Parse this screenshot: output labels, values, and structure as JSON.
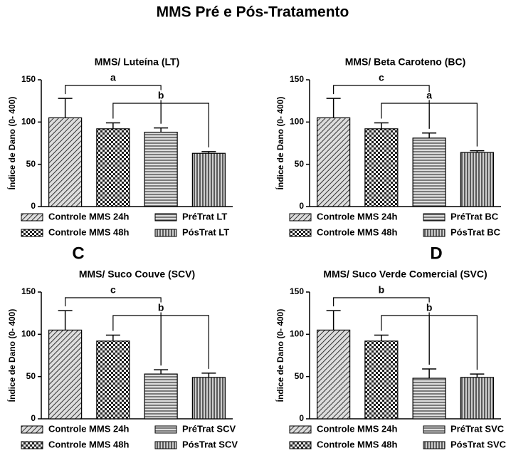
{
  "title": "MMS Pré e Pós-Tratamento",
  "chart_data": [
    {
      "type": "bar",
      "title": "MMS/ Luteína (LT)",
      "ylabel": "Índice de Dano (0- 400)",
      "categories": [
        "Controle MMS 24h",
        "Controle MMS 48h",
        "PréTrat LT",
        "PósTrat LT"
      ],
      "values": [
        105,
        92,
        88,
        63
      ],
      "errors": [
        23,
        7,
        5,
        2
      ],
      "ylim": [
        0,
        150
      ],
      "yticks": [
        0,
        50,
        100,
        150
      ],
      "brackets": [
        {
          "label": "a",
          "from": 0,
          "to": 2
        },
        {
          "label": "b",
          "from": 1,
          "to": 3
        }
      ]
    },
    {
      "type": "bar",
      "title": "MMS/ Beta Caroteno (BC)",
      "ylabel": "Índice de Dano (0- 400)",
      "categories": [
        "Controle MMS 24h",
        "Controle MMS 48h",
        "PréTrat BC",
        "PósTrat BC"
      ],
      "values": [
        105,
        92,
        81,
        64
      ],
      "errors": [
        23,
        7,
        6,
        2
      ],
      "ylim": [
        0,
        150
      ],
      "yticks": [
        0,
        50,
        100,
        150
      ],
      "brackets": [
        {
          "label": "c",
          "from": 0,
          "to": 2
        },
        {
          "label": "a",
          "from": 1,
          "to": 3
        }
      ]
    },
    {
      "type": "bar",
      "title": "MMS/ Suco Couve (SCV)",
      "ylabel": "Índice de Dano (0- 400)",
      "panel_label": "C",
      "categories": [
        "Controle MMS 24h",
        "Controle MMS 48h",
        "PréTrat SCV",
        "PósTrat SCV"
      ],
      "values": [
        105,
        92,
        53,
        49
      ],
      "errors": [
        23,
        7,
        5,
        5
      ],
      "ylim": [
        0,
        150
      ],
      "yticks": [
        0,
        50,
        100,
        150
      ],
      "brackets": [
        {
          "label": "c",
          "from": 0,
          "to": 2
        },
        {
          "label": "b",
          "from": 1,
          "to": 3
        }
      ]
    },
    {
      "type": "bar",
      "title": "MMS/ Suco Verde Comercial (SVC)",
      "ylabel": "Índice de Dano (0- 400)",
      "panel_label": "D",
      "categories": [
        "Controle MMS 24h",
        "Controle MMS 48h",
        "PréTrat SVC",
        "PósTrat SVC"
      ],
      "values": [
        105,
        92,
        48,
        49
      ],
      "errors": [
        23,
        7,
        11,
        4
      ],
      "ylim": [
        0,
        150
      ],
      "yticks": [
        0,
        50,
        100,
        150
      ],
      "brackets": [
        {
          "label": "b",
          "from": 0,
          "to": 2
        },
        {
          "label": "b",
          "from": 1,
          "to": 3
        }
      ]
    }
  ]
}
